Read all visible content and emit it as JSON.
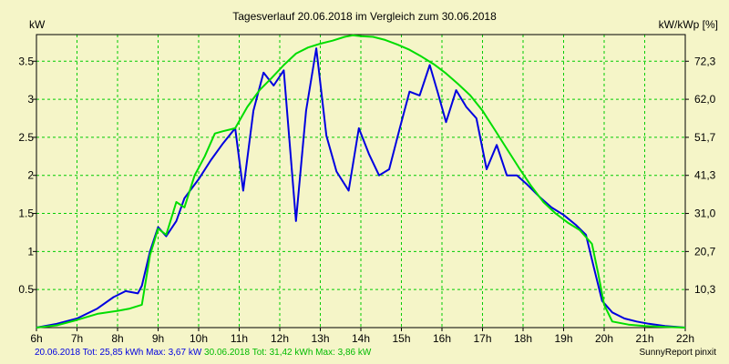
{
  "chart_data": {
    "type": "line",
    "title": "Tagesverlauf 20.06.2018 im Vergleich zum 30.06.2018",
    "ylabel": "kW",
    "ylabel_right": "kW/kWp [%]",
    "xlim": [
      6,
      22
    ],
    "ylim": [
      0,
      3.85
    ],
    "x_ticks": [
      "6h",
      "7h",
      "8h",
      "9h",
      "10h",
      "11h",
      "12h",
      "13h",
      "14h",
      "15h",
      "16h",
      "17h",
      "18h",
      "19h",
      "20h",
      "21h",
      "22h"
    ],
    "y_ticks": [
      "0.5",
      "1",
      "1.5",
      "2",
      "2.5",
      "3",
      "3.5"
    ],
    "y_right_ticks": [
      "10,3",
      "20,7",
      "31,0",
      "41,3",
      "51,7",
      "62,0",
      "72,3"
    ],
    "grid": true,
    "grid_style": "dashed",
    "series": [
      {
        "name": "20.06.2018",
        "color": "#0000e0",
        "x": [
          6.0,
          6.5,
          7.0,
          7.5,
          7.9,
          8.2,
          8.5,
          8.6,
          8.8,
          9.0,
          9.2,
          9.45,
          9.65,
          10.0,
          10.3,
          10.6,
          10.9,
          11.1,
          11.35,
          11.6,
          11.85,
          12.1,
          12.4,
          12.65,
          12.9,
          13.15,
          13.4,
          13.7,
          13.95,
          14.2,
          14.45,
          14.7,
          14.95,
          15.2,
          15.45,
          15.7,
          15.9,
          16.1,
          16.35,
          16.6,
          16.85,
          17.1,
          17.35,
          17.6,
          17.85,
          18.1,
          18.4,
          18.7,
          19.0,
          19.3,
          19.55,
          19.75,
          19.95,
          20.2,
          20.5,
          20.8,
          21.1,
          21.5,
          22.0
        ],
        "values": [
          0.0,
          0.05,
          0.12,
          0.25,
          0.4,
          0.48,
          0.45,
          0.55,
          1.0,
          1.32,
          1.2,
          1.4,
          1.7,
          1.95,
          2.2,
          2.42,
          2.62,
          1.8,
          2.85,
          3.35,
          3.18,
          3.38,
          1.4,
          2.85,
          3.67,
          2.52,
          2.05,
          1.8,
          2.62,
          2.28,
          2.0,
          2.08,
          2.6,
          3.1,
          3.05,
          3.45,
          3.08,
          2.7,
          3.12,
          2.9,
          2.75,
          2.08,
          2.4,
          2.0,
          2.0,
          1.88,
          1.72,
          1.58,
          1.48,
          1.35,
          1.22,
          0.78,
          0.35,
          0.2,
          0.12,
          0.08,
          0.05,
          0.02,
          0.0
        ]
      },
      {
        "name": "30.06.2018",
        "color": "#00dd00",
        "x": [
          6.0,
          6.5,
          7.0,
          7.5,
          8.0,
          8.3,
          8.6,
          8.8,
          9.0,
          9.2,
          9.45,
          9.65,
          9.9,
          10.15,
          10.4,
          10.6,
          10.9,
          11.2,
          11.5,
          11.8,
          12.1,
          12.4,
          12.7,
          13.0,
          13.3,
          13.6,
          13.8,
          14.0,
          14.3,
          14.6,
          14.9,
          15.2,
          15.5,
          15.8,
          16.1,
          16.4,
          16.7,
          17.0,
          17.3,
          17.6,
          17.9,
          18.2,
          18.5,
          18.8,
          19.1,
          19.4,
          19.7,
          19.85,
          20.0,
          20.2,
          20.6,
          21.0,
          21.5,
          22.0
        ],
        "values": [
          0.0,
          0.03,
          0.1,
          0.18,
          0.22,
          0.25,
          0.3,
          0.95,
          1.3,
          1.22,
          1.65,
          1.58,
          2.0,
          2.25,
          2.55,
          2.58,
          2.62,
          2.9,
          3.12,
          3.28,
          3.45,
          3.6,
          3.68,
          3.73,
          3.77,
          3.82,
          3.84,
          3.83,
          3.82,
          3.78,
          3.72,
          3.65,
          3.56,
          3.46,
          3.34,
          3.2,
          3.05,
          2.85,
          2.6,
          2.35,
          2.1,
          1.86,
          1.65,
          1.5,
          1.38,
          1.28,
          1.1,
          0.72,
          0.3,
          0.08,
          0.04,
          0.02,
          0.01,
          0.0
        ]
      }
    ]
  },
  "footer": {
    "series1_text": "20.06.2018 Tot: 25,85 kWh Max: 3,67 kW",
    "series2_text": "30.06.2018 Tot: 31,42 kWh Max: 3,86 kW",
    "series1_color": "#0000e0",
    "series2_color": "#00bb00",
    "credit": "SunnyReport pinxit"
  },
  "colors": {
    "background": "#f5f5c8",
    "grid": "#00cc00",
    "axis": "#000000"
  }
}
